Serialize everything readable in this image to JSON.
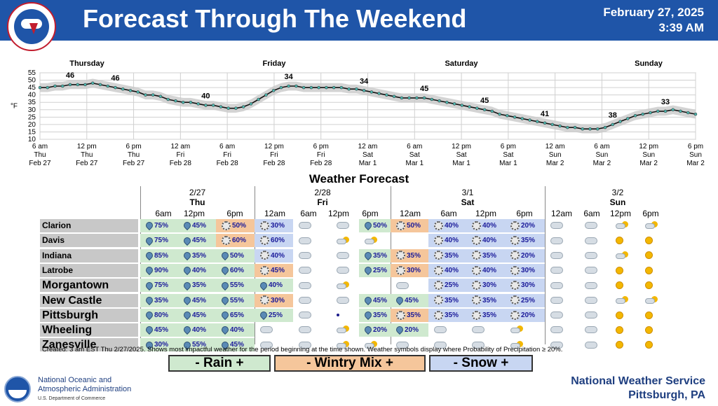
{
  "header": {
    "title": "Forecast Through The Weekend",
    "date": "February 27, 2025",
    "time": "3:39 AM",
    "logo_text": "NATIONAL WEATHER SERVICE"
  },
  "chart_data": {
    "type": "line",
    "ylabel": "°F",
    "yticks": [
      10,
      15,
      20,
      25,
      30,
      35,
      40,
      45,
      50,
      55
    ],
    "ylim": [
      10,
      55
    ],
    "grid": true,
    "day_labels": [
      "Thursday",
      "Friday",
      "Saturday",
      "Sunday"
    ],
    "x_ticks": [
      {
        "time": "6 am",
        "day": "Thu",
        "date": "Feb 27"
      },
      {
        "time": "12 pm",
        "day": "Thu",
        "date": "Feb 27"
      },
      {
        "time": "6 pm",
        "day": "Thu",
        "date": "Feb 27"
      },
      {
        "time": "12 am",
        "day": "Fri",
        "date": "Feb 28"
      },
      {
        "time": "6 am",
        "day": "Fri",
        "date": "Feb 28"
      },
      {
        "time": "12 pm",
        "day": "Fri",
        "date": "Feb 28"
      },
      {
        "time": "6 pm",
        "day": "Fri",
        "date": "Feb 28"
      },
      {
        "time": "12 am",
        "day": "Sat",
        "date": "Mar 1"
      },
      {
        "time": "6 am",
        "day": "Sat",
        "date": "Mar 1"
      },
      {
        "time": "12 pm",
        "day": "Sat",
        "date": "Mar 1"
      },
      {
        "time": "6 pm",
        "day": "Sat",
        "date": "Mar 1"
      },
      {
        "time": "12 am",
        "day": "Sun",
        "date": "Mar 2"
      },
      {
        "time": "6 am",
        "day": "Sun",
        "date": "Mar 2"
      },
      {
        "time": "12 pm",
        "day": "Sun",
        "date": "Mar 2"
      },
      {
        "time": "6 pm",
        "day": "Sun",
        "date": "Mar 2"
      }
    ],
    "temps": [
      45,
      45,
      46,
      46,
      47,
      47,
      47,
      48,
      47,
      46,
      45,
      44,
      43,
      42,
      40,
      40,
      39,
      37,
      36,
      35,
      35,
      34,
      33,
      33,
      32,
      31,
      31,
      32,
      34,
      37,
      40,
      43,
      45,
      46,
      46,
      45,
      45,
      45,
      45,
      45,
      45,
      44,
      44,
      43,
      42,
      41,
      40,
      39,
      38,
      38,
      38,
      38,
      37,
      36,
      35,
      34,
      33,
      32,
      31,
      30,
      29,
      27,
      26,
      25,
      24,
      23,
      22,
      21,
      20,
      19,
      18,
      18,
      17,
      17,
      17,
      18,
      20,
      22,
      24,
      26,
      27,
      28,
      29,
      29,
      30,
      29,
      28,
      27
    ],
    "labels": [
      {
        "v": "46",
        "i": 4
      },
      {
        "v": "46",
        "i": 10
      },
      {
        "v": "40",
        "i": 22
      },
      {
        "v": "34",
        "i": 33
      },
      {
        "v": "34",
        "i": 43
      },
      {
        "v": "45",
        "i": 51
      },
      {
        "v": "45",
        "i": 59
      },
      {
        "v": "41",
        "i": 67
      },
      {
        "v": "38",
        "i": 76
      },
      {
        "v": "33",
        "i": 83
      },
      {
        "v": "24",
        "i": 92
      },
      {
        "v": "18",
        "i": 101
      },
      {
        "v": "20",
        "i": 109
      },
      {
        "v": "29",
        "i": 118
      }
    ]
  },
  "grid": {
    "title": "Weather Forecast",
    "days": [
      {
        "date": "2/27",
        "name": "Thu"
      },
      {
        "date": "2/28",
        "name": "Fri"
      },
      {
        "date": "3/1",
        "name": "Sat"
      },
      {
        "date": "3/2",
        "name": "Sun"
      }
    ],
    "columns": [
      "6am",
      "12pm",
      "6pm",
      "12am",
      "6am",
      "12pm",
      "6pm",
      "12am",
      "6am",
      "12pm",
      "6pm",
      "12am",
      "6am",
      "12pm",
      "6pm"
    ],
    "rows": [
      {
        "city": "Clarion",
        "size": "s",
        "cells": [
          [
            "rain",
            "75%"
          ],
          [
            "rain",
            "45%"
          ],
          [
            "wint",
            "50%"
          ],
          [
            "snow",
            "30%"
          ],
          [
            "cloud",
            ""
          ],
          [
            "cloud",
            ""
          ],
          [
            "rain",
            "50%"
          ],
          [
            "wint",
            "50%"
          ],
          [
            "snow",
            "40%"
          ],
          [
            "snow",
            "40%"
          ],
          [
            "snow",
            "20%"
          ],
          [
            "cloud",
            ""
          ],
          [
            "cloud",
            ""
          ],
          [
            "pcloud",
            ""
          ],
          [
            "pcloud",
            ""
          ]
        ]
      },
      {
        "city": "Davis",
        "size": "s",
        "cells": [
          [
            "rain",
            "75%"
          ],
          [
            "rain",
            "45%"
          ],
          [
            "wint",
            "60%"
          ],
          [
            "snow",
            "60%"
          ],
          [
            "cloud",
            ""
          ],
          [
            "pcloud",
            ""
          ],
          [
            "pcloud",
            ""
          ],
          [
            "none",
            ""
          ],
          [
            "snow",
            "40%"
          ],
          [
            "snow",
            "40%"
          ],
          [
            "snow",
            "35%"
          ],
          [
            "cloud",
            ""
          ],
          [
            "cloud",
            ""
          ],
          [
            "sun",
            ""
          ],
          [
            "sun",
            ""
          ]
        ]
      },
      {
        "city": "Indiana",
        "size": "s",
        "cells": [
          [
            "rain",
            "85%"
          ],
          [
            "rain",
            "35%"
          ],
          [
            "rain",
            "50%"
          ],
          [
            "snow",
            "40%"
          ],
          [
            "cloud",
            ""
          ],
          [
            "cloud",
            ""
          ],
          [
            "rain",
            "35%"
          ],
          [
            "wint",
            "35%"
          ],
          [
            "snow",
            "35%"
          ],
          [
            "snow",
            "35%"
          ],
          [
            "snow",
            "20%"
          ],
          [
            "cloud",
            ""
          ],
          [
            "cloud",
            ""
          ],
          [
            "pcloud",
            ""
          ],
          [
            "sun",
            ""
          ]
        ]
      },
      {
        "city": "Latrobe",
        "size": "s",
        "cells": [
          [
            "rain",
            "90%"
          ],
          [
            "rain",
            "40%"
          ],
          [
            "rain",
            "60%"
          ],
          [
            "wint",
            "45%"
          ],
          [
            "cloud",
            ""
          ],
          [
            "cloud",
            ""
          ],
          [
            "rain",
            "25%"
          ],
          [
            "wint",
            "30%"
          ],
          [
            "snow",
            "40%"
          ],
          [
            "snow",
            "40%"
          ],
          [
            "snow",
            "30%"
          ],
          [
            "cloud",
            ""
          ],
          [
            "cloud",
            ""
          ],
          [
            "sun",
            ""
          ],
          [
            "sun",
            ""
          ]
        ]
      },
      {
        "city": "Morgantown",
        "size": "l",
        "cells": [
          [
            "rain",
            "75%"
          ],
          [
            "rain",
            "35%"
          ],
          [
            "rain",
            "55%"
          ],
          [
            "rain",
            "40%"
          ],
          [
            "cloud",
            ""
          ],
          [
            "pcloud",
            ""
          ],
          [
            "none",
            ""
          ],
          [
            "cloud",
            ""
          ],
          [
            "snow",
            "25%"
          ],
          [
            "snow",
            "30%"
          ],
          [
            "snow",
            "30%"
          ],
          [
            "cloud",
            ""
          ],
          [
            "cloud",
            ""
          ],
          [
            "sun",
            ""
          ],
          [
            "sun",
            ""
          ]
        ]
      },
      {
        "city": "New Castle",
        "size": "l",
        "cells": [
          [
            "rain",
            "35%"
          ],
          [
            "rain",
            "45%"
          ],
          [
            "rain",
            "55%"
          ],
          [
            "wint",
            "30%"
          ],
          [
            "cloud",
            ""
          ],
          [
            "cloud",
            ""
          ],
          [
            "rain",
            "45%"
          ],
          [
            "rain",
            "45%"
          ],
          [
            "snow",
            "35%"
          ],
          [
            "snow",
            "35%"
          ],
          [
            "snow",
            "25%"
          ],
          [
            "cloud",
            ""
          ],
          [
            "cloud",
            ""
          ],
          [
            "pcloud",
            ""
          ],
          [
            "pcloud",
            ""
          ]
        ]
      },
      {
        "city": "Pittsburgh",
        "size": "l",
        "cells": [
          [
            "rain",
            "80%"
          ],
          [
            "rain",
            "45%"
          ],
          [
            "rain",
            "65%"
          ],
          [
            "rain",
            "25%"
          ],
          [
            "cloud",
            ""
          ],
          [
            "dot",
            ""
          ],
          [
            "rain",
            "35%"
          ],
          [
            "wint",
            "35%"
          ],
          [
            "snow",
            "35%"
          ],
          [
            "snow",
            "35%"
          ],
          [
            "snow",
            "20%"
          ],
          [
            "cloud",
            ""
          ],
          [
            "cloud",
            ""
          ],
          [
            "sun",
            ""
          ],
          [
            "sun",
            ""
          ]
        ]
      },
      {
        "city": "Wheeling",
        "size": "l",
        "cells": [
          [
            "rain",
            "45%"
          ],
          [
            "rain",
            "40%"
          ],
          [
            "rain",
            "40%"
          ],
          [
            "cloud",
            ""
          ],
          [
            "cloud",
            ""
          ],
          [
            "pcloud",
            ""
          ],
          [
            "rain",
            "20%"
          ],
          [
            "rain",
            "20%"
          ],
          [
            "cloud",
            ""
          ],
          [
            "cloud",
            ""
          ],
          [
            "pcloud",
            ""
          ],
          [
            "cloud",
            ""
          ],
          [
            "cloud",
            ""
          ],
          [
            "sun",
            ""
          ],
          [
            "sun",
            ""
          ]
        ]
      },
      {
        "city": "Zanesville",
        "size": "l",
        "cells": [
          [
            "rain",
            "30%"
          ],
          [
            "rain",
            "55%"
          ],
          [
            "rain",
            "45%"
          ],
          [
            "cloud",
            ""
          ],
          [
            "cloud",
            ""
          ],
          [
            "pcloud",
            ""
          ],
          [
            "pcloud",
            ""
          ],
          [
            "cloud",
            ""
          ],
          [
            "cloud",
            ""
          ],
          [
            "cloud",
            ""
          ],
          [
            "pcloud",
            ""
          ],
          [
            "cloud",
            ""
          ],
          [
            "cloud",
            ""
          ],
          [
            "sun",
            ""
          ],
          [
            "sun",
            ""
          ]
        ]
      }
    ],
    "created": "Created: 3 am EST Thu 2/27/2025. Shows most impactful weather for the period beginning at the time shown. Weather symbols display where Probability of Precipitation ≥ 20%."
  },
  "legend": {
    "rain": "- Rain +",
    "wintry": "- Wintry Mix +",
    "snow": "- Snow +",
    "colors": {
      "rain": "#cfe9cf",
      "wintry": "#f5c69b",
      "snow": "#c8d6f2"
    }
  },
  "footer": {
    "noaa_line1": "National Oceanic and",
    "noaa_line2": "Atmospheric Administration",
    "noaa_line3": "U.S. Department of Commerce",
    "nws_line1": "National Weather Service",
    "nws_line2": "Pittsburgh, PA"
  }
}
